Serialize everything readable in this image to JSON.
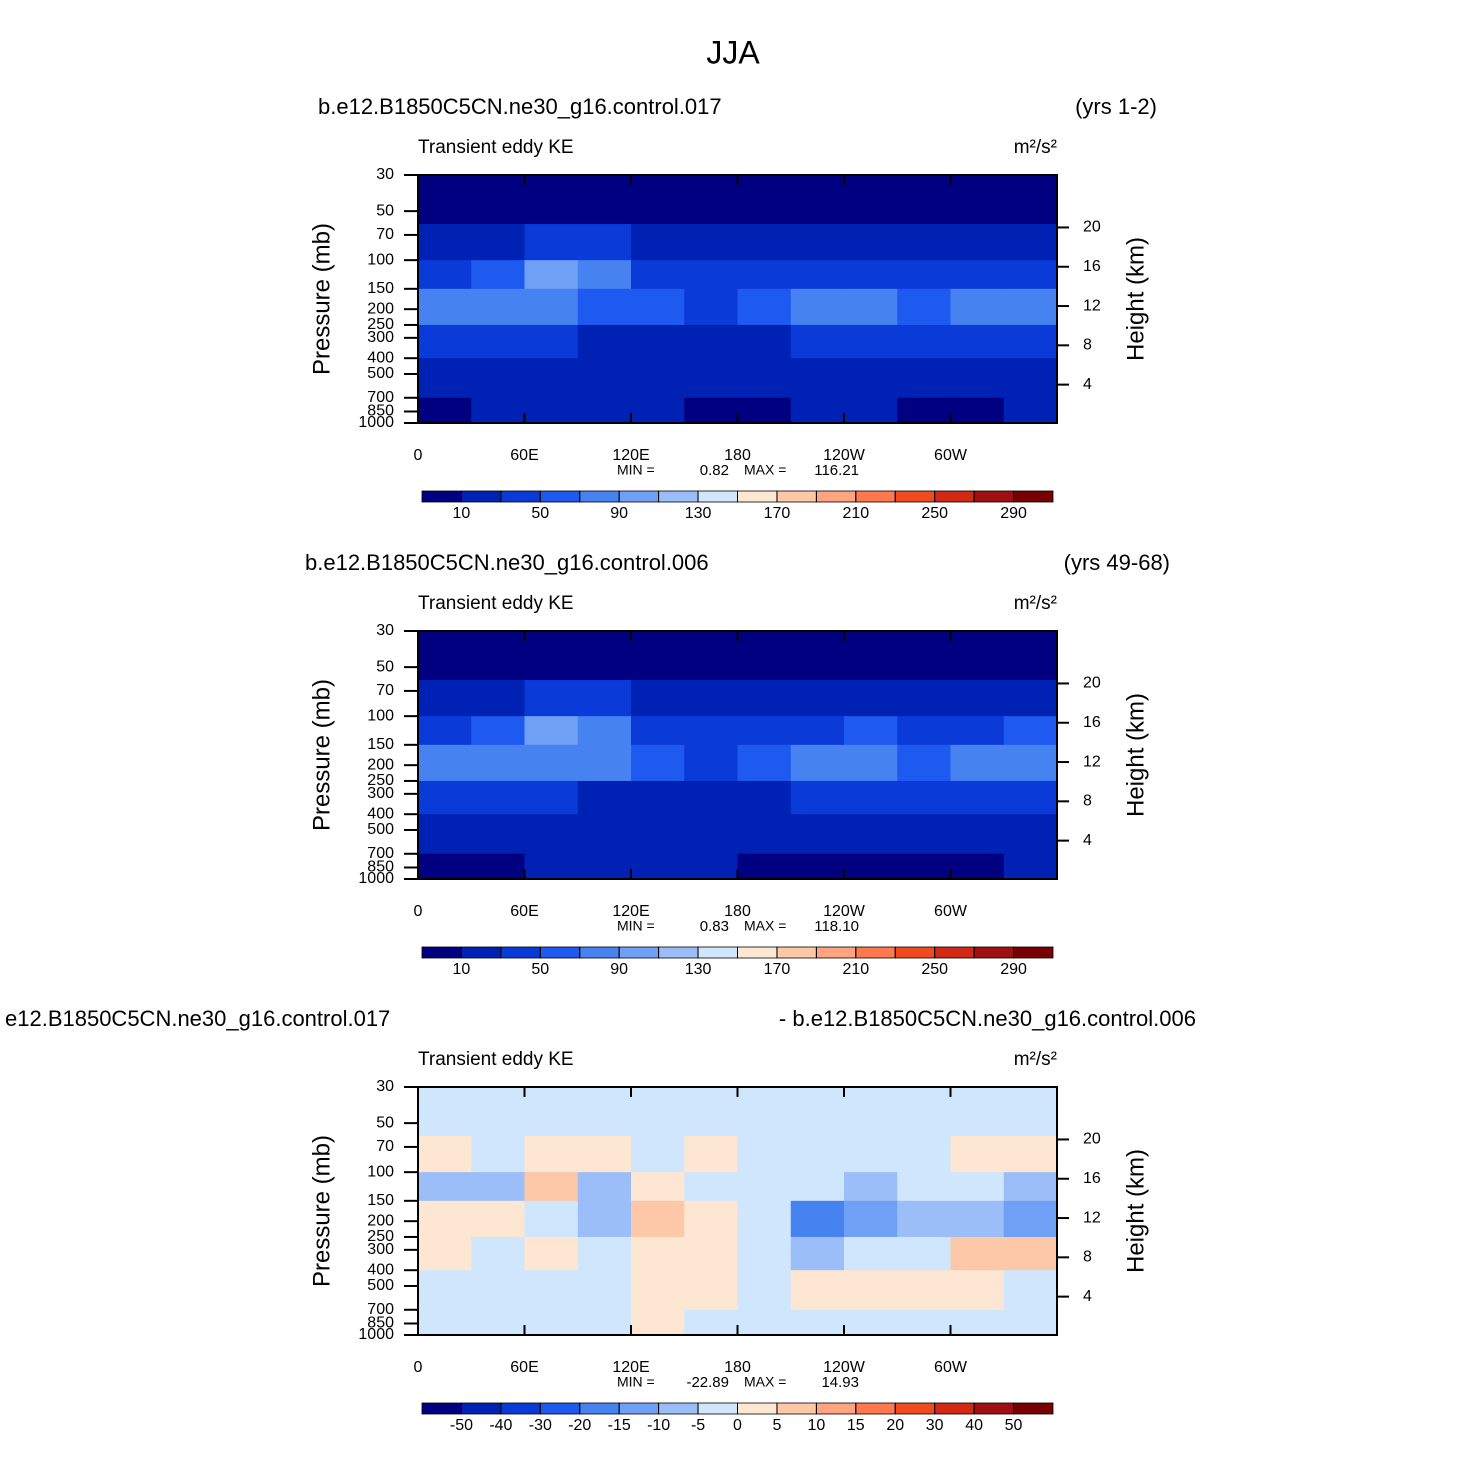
{
  "title": "JJA",
  "chart_data": [
    {
      "type": "contour",
      "title_left": "b.e12.B1850C5CN.ne30_g16.control.017",
      "title_right": "(yrs 1-2)",
      "subtitle": "Transient eddy KE",
      "units": "m²/s²",
      "y_label": "Pressure (mb)",
      "y2_label": "Height (km)",
      "xlim": [
        0,
        360
      ],
      "ylim": [
        1000,
        30
      ],
      "log_y": true,
      "xticks": [
        0,
        {
          "value": 60,
          "label": "60E"
        },
        {
          "value": 120,
          "label": "120E"
        },
        180,
        {
          "value": 240,
          "label": "120W"
        },
        {
          "value": 300,
          "label": "60W"
        }
      ],
      "yticks": [
        30,
        50,
        70,
        100,
        150,
        200,
        250,
        300,
        400,
        500,
        700,
        850,
        1000
      ],
      "y2ticks": [
        20,
        16,
        12,
        8,
        4
      ],
      "lon_edges": [
        0,
        30,
        60,
        90,
        120,
        150,
        180,
        210,
        240,
        270,
        300,
        330,
        360
      ],
      "pressure_edges": [
        30,
        60,
        100,
        150,
        250,
        400,
        700,
        1000
      ],
      "values": [
        [
          5,
          5,
          5,
          5,
          5,
          5,
          5,
          5,
          5,
          5,
          5,
          5
        ],
        [
          20,
          25,
          35,
          40,
          25,
          20,
          20,
          20,
          20,
          20,
          20,
          20
        ],
        [
          40,
          55,
          95,
          80,
          45,
          35,
          35,
          40,
          45,
          40,
          45,
          40
        ],
        [
          75,
          85,
          80,
          65,
          50,
          40,
          60,
          70,
          70,
          60,
          75,
          85
        ],
        [
          45,
          40,
          40,
          25,
          25,
          25,
          25,
          40,
          40,
          40,
          40,
          45
        ],
        [
          25,
          25,
          25,
          20,
          20,
          20,
          20,
          20,
          25,
          20,
          25,
          25
        ],
        [
          8,
          15,
          15,
          15,
          15,
          8,
          8,
          15,
          15,
          8,
          8,
          15
        ]
      ],
      "min_label": "MIN =",
      "min": 0.82,
      "max_label": "MAX =",
      "max": 116.21,
      "levels": [
        10,
        30,
        50,
        70,
        90,
        110,
        130,
        150,
        170,
        190,
        210,
        230,
        250,
        270,
        290
      ],
      "colorbar_ticks": [
        10,
        50,
        90,
        130,
        170,
        210,
        250,
        290
      ],
      "colors": [
        "#000080",
        "#0022b4",
        "#0a3ad8",
        "#1e5af0",
        "#4682f0",
        "#6ea0f5",
        "#9bbef8",
        "#d0e6fc",
        "#fde6d2",
        "#fcc8a8",
        "#ffa47e",
        "#ff7850",
        "#f04a1e",
        "#d22814",
        "#a01010",
        "#780000"
      ]
    },
    {
      "type": "contour",
      "title_left": "b.e12.B1850C5CN.ne30_g16.control.006",
      "title_right": "(yrs 49-68)",
      "subtitle": "Transient eddy KE",
      "units": "m²/s²",
      "y_label": "Pressure (mb)",
      "y2_label": "Height (km)",
      "xlim": [
        0,
        360
      ],
      "ylim": [
        1000,
        30
      ],
      "log_y": true,
      "xticks": [
        0,
        {
          "value": 60,
          "label": "60E"
        },
        {
          "value": 120,
          "label": "120E"
        },
        180,
        {
          "value": 240,
          "label": "120W"
        },
        {
          "value": 300,
          "label": "60W"
        }
      ],
      "yticks": [
        30,
        50,
        70,
        100,
        150,
        200,
        250,
        300,
        400,
        500,
        700,
        850,
        1000
      ],
      "y2ticks": [
        20,
        16,
        12,
        8,
        4
      ],
      "lon_edges": [
        0,
        30,
        60,
        90,
        120,
        150,
        180,
        210,
        240,
        270,
        300,
        330,
        360
      ],
      "pressure_edges": [
        30,
        60,
        100,
        150,
        250,
        400,
        700,
        1000
      ],
      "values": [
        [
          5,
          5,
          5,
          5,
          5,
          5,
          5,
          5,
          5,
          5,
          5,
          5
        ],
        [
          25,
          25,
          40,
          35,
          25,
          20,
          20,
          20,
          20,
          20,
          25,
          25
        ],
        [
          45,
          60,
          100,
          75,
          45,
          35,
          35,
          45,
          50,
          45,
          45,
          50
        ],
        [
          75,
          80,
          80,
          70,
          50,
          35,
          50,
          70,
          75,
          55,
          70,
          85
        ],
        [
          40,
          40,
          35,
          25,
          25,
          25,
          25,
          35,
          40,
          40,
          40,
          45
        ],
        [
          25,
          25,
          25,
          20,
          20,
          20,
          20,
          20,
          20,
          20,
          20,
          25
        ],
        [
          8,
          8,
          15,
          15,
          15,
          15,
          8,
          8,
          8,
          8,
          8,
          15
        ]
      ],
      "min_label": "MIN =",
      "min": 0.83,
      "max_label": "MAX =",
      "max": {
        "value": 118.1,
        "label": "118.10"
      },
      "levels": [
        10,
        30,
        50,
        70,
        90,
        110,
        130,
        150,
        170,
        190,
        210,
        230,
        250,
        270,
        290
      ],
      "colorbar_ticks": [
        10,
        50,
        90,
        130,
        170,
        210,
        250,
        290
      ],
      "colors": [
        "#000080",
        "#0022b4",
        "#0a3ad8",
        "#1e5af0",
        "#4682f0",
        "#6ea0f5",
        "#9bbef8",
        "#d0e6fc",
        "#fde6d2",
        "#fcc8a8",
        "#ffa47e",
        "#ff7850",
        "#f04a1e",
        "#d22814",
        "#a01010",
        "#780000"
      ]
    },
    {
      "type": "contour",
      "title_left": "e12.B1850C5CN.ne30_g16.control.017",
      "title_right": "- b.e12.B1850C5CN.ne30_g16.control.006",
      "subtitle": "Transient eddy KE",
      "units": "m²/s²",
      "y_label": "Pressure (mb)",
      "y2_label": "Height (km)",
      "xlim": [
        0,
        360
      ],
      "ylim": [
        1000,
        30
      ],
      "log_y": true,
      "xticks": [
        0,
        {
          "value": 60,
          "label": "60E"
        },
        {
          "value": 120,
          "label": "120E"
        },
        180,
        {
          "value": 240,
          "label": "120W"
        },
        {
          "value": 300,
          "label": "60W"
        }
      ],
      "yticks": [
        30,
        50,
        70,
        100,
        150,
        200,
        250,
        300,
        400,
        500,
        700,
        850,
        1000
      ],
      "y2ticks": [
        20,
        16,
        12,
        8,
        4
      ],
      "lon_edges": [
        0,
        30,
        60,
        90,
        120,
        150,
        180,
        210,
        240,
        270,
        300,
        330,
        360
      ],
      "pressure_edges": [
        30,
        60,
        100,
        150,
        250,
        400,
        700,
        1000
      ],
      "values": [
        [
          -2,
          -2,
          -2,
          -2,
          -2,
          -2,
          -2,
          -2,
          -2,
          -2,
          -2,
          -2
        ],
        [
          2,
          -2,
          3,
          2,
          -2,
          2,
          -2,
          -2,
          -2,
          -2,
          2,
          3
        ],
        [
          -6,
          -8,
          6,
          -7,
          2,
          -2,
          -3,
          -4,
          -6,
          -3,
          -3,
          -6
        ],
        [
          2,
          3,
          -4,
          -6,
          6,
          2,
          -3,
          -18,
          -14,
          -6,
          -8,
          -12
        ],
        [
          2,
          -2,
          2,
          -2,
          3,
          2,
          -2,
          -6,
          -4,
          -2,
          6,
          6
        ],
        [
          -2,
          -2,
          -2,
          -4,
          2,
          3,
          -2,
          2,
          2,
          2,
          3,
          -2
        ],
        [
          -2,
          -2,
          -2,
          -2,
          2,
          -2,
          -2,
          -2,
          -2,
          -2,
          -2,
          -2
        ]
      ],
      "min_label": "MIN =",
      "min": -22.89,
      "max_label": "MAX =",
      "max": 14.93,
      "levels": [
        -50,
        -40,
        -30,
        -20,
        -15,
        -10,
        -5,
        0,
        5,
        10,
        15,
        20,
        30,
        40,
        50
      ],
      "colorbar_ticks": [
        -50,
        -40,
        -30,
        -20,
        -15,
        -10,
        -5,
        0,
        5,
        10,
        15,
        20,
        30,
        40,
        50
      ],
      "colors": [
        "#000080",
        "#0022b4",
        "#0a3ad8",
        "#1e5af0",
        "#4682f0",
        "#6ea0f5",
        "#9bbef8",
        "#d0e6fc",
        "#fde6d2",
        "#fcc8a8",
        "#ffa47e",
        "#ff7850",
        "#f04a1e",
        "#d22814",
        "#a01010",
        "#780000"
      ]
    }
  ]
}
